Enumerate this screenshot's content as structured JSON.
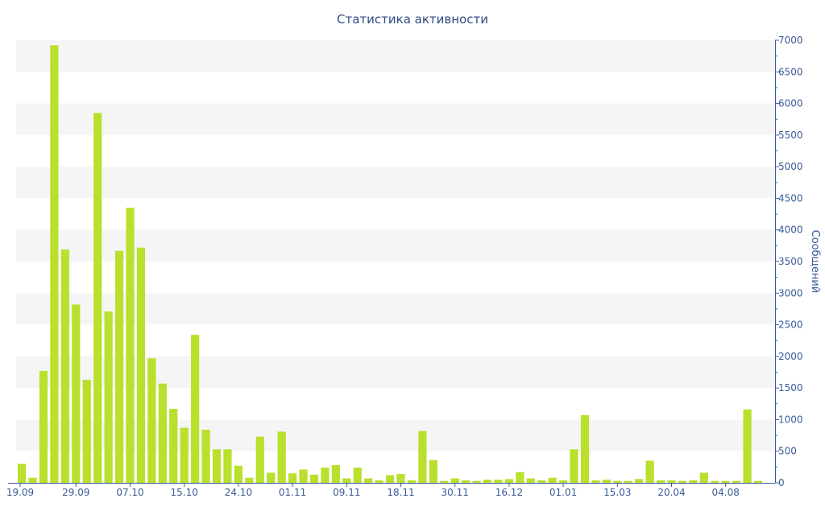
{
  "chart_data": {
    "type": "bar",
    "title": "Статистика активности",
    "ylabel": "Сообщений",
    "ylim": [
      0,
      7000
    ],
    "yticks": [
      0,
      500,
      1000,
      1500,
      2000,
      2500,
      3000,
      3500,
      4000,
      4500,
      5000,
      5500,
      6000,
      6500,
      7000
    ],
    "xtick_labels": [
      "19.09",
      "29.09",
      "07.10",
      "15.10",
      "24.10",
      "01.11",
      "09.11",
      "18.11",
      "30.11",
      "16.12",
      "01.01",
      "15.03",
      "20.04",
      "04.08"
    ],
    "values": [
      300,
      80,
      1770,
      6920,
      3690,
      2820,
      1630,
      5850,
      2710,
      3670,
      4350,
      3720,
      1970,
      1570,
      1170,
      870,
      2340,
      840,
      530,
      530,
      270,
      80,
      730,
      160,
      810,
      150,
      210,
      130,
      240,
      280,
      70,
      240,
      70,
      40,
      120,
      140,
      40,
      820,
      360,
      30,
      70,
      40,
      30,
      50,
      50,
      60,
      170,
      70,
      40,
      80,
      40,
      530,
      1070,
      40,
      50,
      30,
      30,
      60,
      350,
      40,
      40,
      30,
      40,
      160,
      30,
      30,
      30,
      1160,
      30
    ],
    "colors": {
      "bar": "#b9e02c",
      "band": "#f5f5f5",
      "axis": "#3a5a98",
      "title": "#2e4a84"
    },
    "grid": "alternating horizontal bands",
    "y_axis_side": "right"
  }
}
